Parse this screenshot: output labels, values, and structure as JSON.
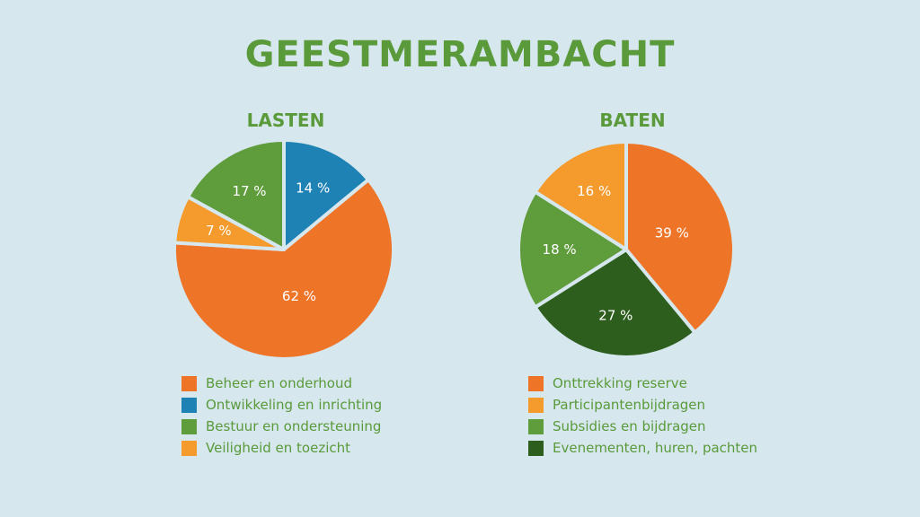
{
  "title": "GEESTMERAMBACHT",
  "chart_data": [
    {
      "type": "pie",
      "title": "LASTEN",
      "categories": [
        "Beheer en onderhoud",
        "Ontwikkeling en inrichting",
        "Bestuur en ondersteuning",
        "Veiligheid en toezicht"
      ],
      "values": [
        62,
        14,
        17,
        7
      ],
      "labels": [
        "62 %",
        "14 %",
        "17 %",
        "7 %"
      ],
      "colors": [
        "#ee7428",
        "#1f82b5",
        "#5f9c3c",
        "#f59a2c"
      ],
      "label_colors": [
        "#ffffff",
        "#ffffff",
        "#ffffff",
        "#ffffff"
      ],
      "slice_order": [
        1,
        0,
        3,
        2
      ]
    },
    {
      "type": "pie",
      "title": "BATEN",
      "categories": [
        "Onttrekking reserve",
        "Participantenbijdragen",
        "Subsidies en bijdragen",
        "Evenementen, huren, pachten"
      ],
      "values": [
        39,
        16,
        18,
        27
      ],
      "labels": [
        "39 %",
        "16 %",
        "18 %",
        "27 %"
      ],
      "colors": [
        "#ee7428",
        "#f59a2c",
        "#5f9c3c",
        "#2e5e1e"
      ],
      "label_colors": [
        "#ffffff",
        "#ffffff",
        "#ffffff",
        "#ffffff"
      ],
      "slice_order": [
        0,
        3,
        2,
        1
      ]
    }
  ]
}
